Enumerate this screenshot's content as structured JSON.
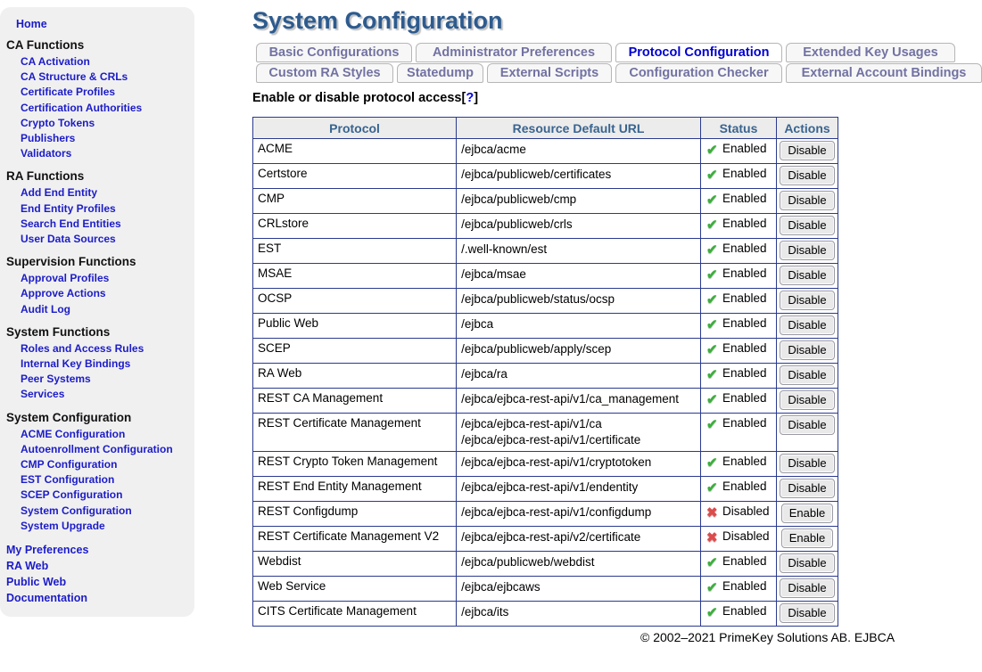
{
  "sidebar": {
    "home": "Home",
    "sections": [
      {
        "title": "CA Functions",
        "items": [
          "CA Activation",
          "CA Structure & CRLs",
          "Certificate Profiles",
          "Certification Authorities",
          "Crypto Tokens",
          "Publishers",
          "Validators"
        ]
      },
      {
        "title": "RA Functions",
        "items": [
          "Add End Entity",
          "End Entity Profiles",
          "Search End Entities",
          "User Data Sources"
        ]
      },
      {
        "title": "Supervision Functions",
        "items": [
          "Approval Profiles",
          "Approve Actions",
          "Audit Log"
        ]
      },
      {
        "title": "System Functions",
        "items": [
          "Roles and Access Rules",
          "Internal Key Bindings",
          "Peer Systems",
          "Services"
        ]
      },
      {
        "title": "System Configuration",
        "items": [
          "ACME Configuration",
          "Autoenrollment Configuration",
          "CMP Configuration",
          "EST Configuration",
          "SCEP Configuration",
          "System Configuration",
          "System Upgrade"
        ]
      }
    ],
    "footer_links": [
      "My Preferences",
      "RA Web",
      "Public Web",
      "Documentation"
    ]
  },
  "main": {
    "title": "System Configuration",
    "tabs_row1": [
      {
        "label": "Basic Configurations",
        "active": false
      },
      {
        "label": "Administrator Preferences",
        "active": false
      },
      {
        "label": "Protocol Configuration",
        "active": true
      },
      {
        "label": "Extended Key Usages",
        "active": false
      }
    ],
    "tabs_row2": [
      {
        "label": "Custom RA Styles",
        "active": false
      },
      {
        "label": "Statedump",
        "active": false
      },
      {
        "label": "External Scripts",
        "active": false
      },
      {
        "label": "Configuration Checker",
        "active": false
      },
      {
        "label": "External Account Bindings",
        "active": false
      }
    ],
    "heading": {
      "text": "Enable or disable protocol access",
      "bracket_open": "[",
      "help": "?",
      "bracket_close": "]"
    },
    "table": {
      "columns": [
        "Protocol",
        "Resource Default URL",
        "Status",
        "Actions"
      ],
      "rows": [
        {
          "protocol": "ACME",
          "urls": [
            "/ejbca/acme"
          ],
          "status": "Enabled",
          "action": "Disable"
        },
        {
          "protocol": "Certstore",
          "urls": [
            "/ejbca/publicweb/certificates"
          ],
          "status": "Enabled",
          "action": "Disable"
        },
        {
          "protocol": "CMP",
          "urls": [
            "/ejbca/publicweb/cmp"
          ],
          "status": "Enabled",
          "action": "Disable"
        },
        {
          "protocol": "CRLstore",
          "urls": [
            "/ejbca/publicweb/crls"
          ],
          "status": "Enabled",
          "action": "Disable"
        },
        {
          "protocol": "EST",
          "urls": [
            "/.well-known/est"
          ],
          "status": "Enabled",
          "action": "Disable"
        },
        {
          "protocol": "MSAE",
          "urls": [
            "/ejbca/msae"
          ],
          "status": "Enabled",
          "action": "Disable"
        },
        {
          "protocol": "OCSP",
          "urls": [
            "/ejbca/publicweb/status/ocsp"
          ],
          "status": "Enabled",
          "action": "Disable"
        },
        {
          "protocol": "Public Web",
          "urls": [
            "/ejbca"
          ],
          "status": "Enabled",
          "action": "Disable"
        },
        {
          "protocol": "SCEP",
          "urls": [
            "/ejbca/publicweb/apply/scep"
          ],
          "status": "Enabled",
          "action": "Disable"
        },
        {
          "protocol": "RA Web",
          "urls": [
            "/ejbca/ra"
          ],
          "status": "Enabled",
          "action": "Disable"
        },
        {
          "protocol": "REST CA Management",
          "urls": [
            "/ejbca/ejbca-rest-api/v1/ca_management"
          ],
          "status": "Enabled",
          "action": "Disable"
        },
        {
          "protocol": "REST Certificate Management",
          "urls": [
            "/ejbca/ejbca-rest-api/v1/ca",
            "/ejbca/ejbca-rest-api/v1/certificate"
          ],
          "status": "Enabled",
          "action": "Disable"
        },
        {
          "protocol": "REST Crypto Token Management",
          "urls": [
            "/ejbca/ejbca-rest-api/v1/cryptotoken"
          ],
          "status": "Enabled",
          "action": "Disable"
        },
        {
          "protocol": "REST End Entity Management",
          "urls": [
            "/ejbca/ejbca-rest-api/v1/endentity"
          ],
          "status": "Enabled",
          "action": "Disable"
        },
        {
          "protocol": "REST Configdump",
          "urls": [
            "/ejbca/ejbca-rest-api/v1/configdump"
          ],
          "status": "Disabled",
          "action": "Enable"
        },
        {
          "protocol": "REST Certificate Management V2",
          "urls": [
            "/ejbca/ejbca-rest-api/v2/certificate"
          ],
          "status": "Disabled",
          "action": "Enable"
        },
        {
          "protocol": "Webdist",
          "urls": [
            "/ejbca/publicweb/webdist"
          ],
          "status": "Enabled",
          "action": "Disable"
        },
        {
          "protocol": "Web Service",
          "urls": [
            "/ejbca/ejbcaws"
          ],
          "status": "Enabled",
          "action": "Disable"
        },
        {
          "protocol": "CITS Certificate Management",
          "urls": [
            "/ejbca/its"
          ],
          "status": "Enabled",
          "action": "Disable"
        }
      ]
    },
    "footer": "© 2002–2021 PrimeKey Solutions AB. EJBCA"
  },
  "icons": {
    "enabled": "✔",
    "disabled": "✖"
  },
  "colors": {
    "sidebar_bg": "#f0f0f0",
    "link_blue": "#1c1cc8",
    "title_blue": "#2d5b8e",
    "table_border": "#2b3a8f",
    "header_text": "#39648f",
    "tab_inactive_text": "#7272a3",
    "tab_active_text": "#0000d0",
    "status_green": "#3cae3c",
    "status_red": "#dd4b4b"
  }
}
